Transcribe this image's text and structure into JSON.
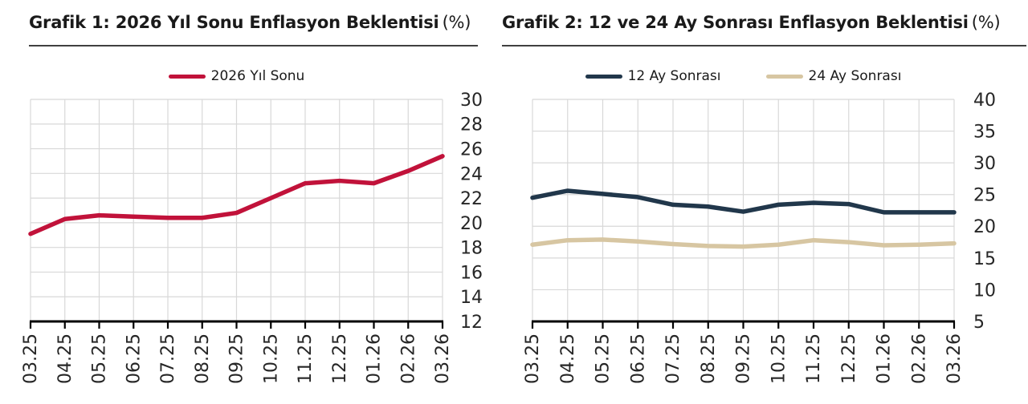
{
  "chart_data": [
    {
      "type": "line",
      "title": "Grafik 1: 2026 Yıl Sonu Enflasyon Beklentisi",
      "title_unit": "(%)",
      "categories": [
        "03.25",
        "04.25",
        "05.25",
        "06.25",
        "07.25",
        "08.25",
        "09.25",
        "10.25",
        "11.25",
        "12.25",
        "01.26",
        "02.26",
        "03.26"
      ],
      "series": [
        {
          "name": "2026 Yıl Sonu",
          "color": "#c1123a",
          "values": [
            19.1,
            20.3,
            20.6,
            20.5,
            20.4,
            20.4,
            20.8,
            22.0,
            23.2,
            23.4,
            23.2,
            24.2,
            25.4
          ]
        }
      ],
      "ylim": [
        12,
        30
      ],
      "ytick_step": 2,
      "yaxis_side": "right",
      "xtick_rotation": 90,
      "grid": true,
      "legend_position": "top"
    },
    {
      "type": "line",
      "title": "Grafik 2: 12 ve 24 Ay Sonrası Enflasyon Beklentisi",
      "title_unit": "(%)",
      "categories": [
        "03.25",
        "04.25",
        "05.25",
        "06.25",
        "07.25",
        "08.25",
        "09.25",
        "10.25",
        "11.25",
        "12.25",
        "01.26",
        "02.26",
        "03.26"
      ],
      "series": [
        {
          "name": "12 Ay Sonrası",
          "color": "#21374b",
          "values": [
            24.5,
            25.6,
            25.1,
            24.6,
            23.4,
            23.1,
            22.3,
            23.4,
            23.7,
            23.5,
            22.2,
            22.2,
            22.2
          ]
        },
        {
          "name": "24 Ay Sonrası",
          "color": "#d7c6a2",
          "values": [
            17.1,
            17.8,
            17.9,
            17.6,
            17.2,
            16.9,
            16.8,
            17.1,
            17.8,
            17.5,
            17.0,
            17.1,
            17.3
          ]
        }
      ],
      "ylim": [
        5,
        40
      ],
      "ytick_step": 5,
      "yaxis_side": "right",
      "xtick_rotation": 90,
      "grid": true,
      "legend_position": "top"
    }
  ],
  "styles": {
    "background": "#ffffff",
    "grid_color": "#d8d8d8",
    "axis_color": "#000000",
    "rule_color": "#404040",
    "title_color": "#1a1a1a",
    "tick_label_color": "#262626"
  }
}
